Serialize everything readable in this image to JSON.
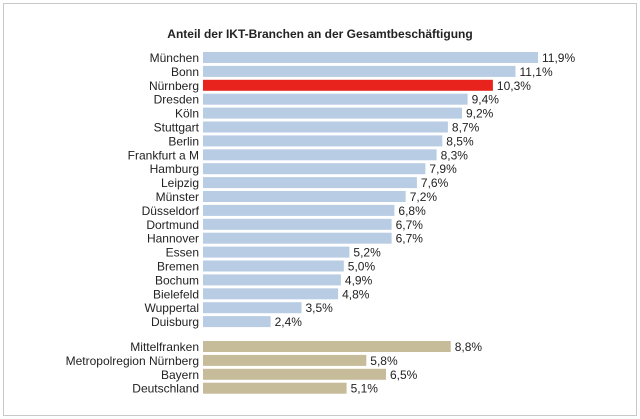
{
  "chart_data": {
    "type": "bar",
    "orientation": "horizontal",
    "title": "Anteil der IKT-Branchen an der Gesamtbeschäftigung",
    "unit": "%",
    "xlim": [
      0,
      12
    ],
    "grid": false,
    "legend": "none",
    "colors": {
      "city": "#b8cce4",
      "highlight": "#e8221c",
      "region": "#c6bc9a"
    },
    "bars": [
      {
        "category": "München",
        "value": 11.9,
        "label": "11,9%",
        "group": "city"
      },
      {
        "category": "Bonn",
        "value": 11.1,
        "label": "11,1%",
        "group": "city"
      },
      {
        "category": "Nürnberg",
        "value": 10.3,
        "label": "10,3%",
        "group": "highlight"
      },
      {
        "category": "Dresden",
        "value": 9.4,
        "label": "9,4%",
        "group": "city"
      },
      {
        "category": "Köln",
        "value": 9.2,
        "label": "9,2%",
        "group": "city"
      },
      {
        "category": "Stuttgart",
        "value": 8.7,
        "label": "8,7%",
        "group": "city"
      },
      {
        "category": "Berlin",
        "value": 8.5,
        "label": "8,5%",
        "group": "city"
      },
      {
        "category": "Frankfurt a M",
        "value": 8.3,
        "label": "8,3%",
        "group": "city"
      },
      {
        "category": "Hamburg",
        "value": 7.9,
        "label": "7,9%",
        "group": "city"
      },
      {
        "category": "Leipzig",
        "value": 7.6,
        "label": "7,6%",
        "group": "city"
      },
      {
        "category": "Münster",
        "value": 7.2,
        "label": "7,2%",
        "group": "city"
      },
      {
        "category": "Düsseldorf",
        "value": 6.8,
        "label": "6,8%",
        "group": "city"
      },
      {
        "category": "Dortmund",
        "value": 6.7,
        "label": "6,7%",
        "group": "city"
      },
      {
        "category": "Hannover",
        "value": 6.7,
        "label": "6,7%",
        "group": "city"
      },
      {
        "category": "Essen",
        "value": 5.2,
        "label": "5,2%",
        "group": "city"
      },
      {
        "category": "Bremen",
        "value": 5.0,
        "label": "5,0%",
        "group": "city"
      },
      {
        "category": "Bochum",
        "value": 4.9,
        "label": "4,9%",
        "group": "city"
      },
      {
        "category": "Bielefeld",
        "value": 4.8,
        "label": "4,8%",
        "group": "city"
      },
      {
        "category": "Wuppertal",
        "value": 3.5,
        "label": "3,5%",
        "group": "city"
      },
      {
        "category": "Duisburg",
        "value": 2.4,
        "label": "2,4%",
        "group": "city"
      },
      {
        "category": "Mittelfranken",
        "value": 8.8,
        "label": "8,8%",
        "group": "region"
      },
      {
        "category": "Metropolregion Nürnberg",
        "value": 5.8,
        "label": "5,8%",
        "group": "region"
      },
      {
        "category": "Bayern",
        "value": 6.5,
        "label": "6,5%",
        "group": "region"
      },
      {
        "category": "Deutschland",
        "value": 5.1,
        "label": "5,1%",
        "group": "region"
      }
    ]
  }
}
